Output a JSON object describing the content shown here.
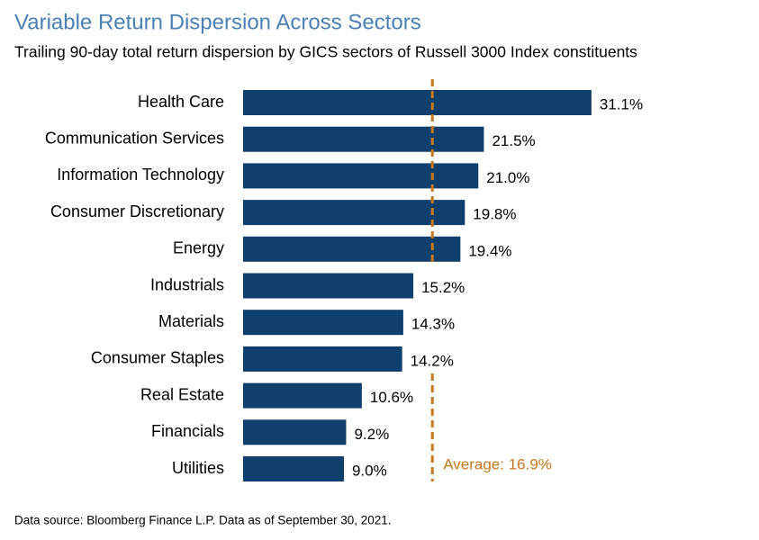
{
  "chart_data": {
    "type": "hbar",
    "title": "Variable Return Dispersion Across Sectors",
    "subtitle": "Trailing 90-day total return dispersion by GICS sectors of Russell 3000 Index constituents",
    "categories": [
      "Health Care",
      "Communication Services",
      "Information Technology",
      "Consumer Discretionary",
      "Energy",
      "Industrials",
      "Materials",
      "Consumer Staples",
      "Real Estate",
      "Financials",
      "Utilities"
    ],
    "values": [
      31.1,
      21.5,
      21.0,
      19.8,
      19.4,
      15.2,
      14.3,
      14.2,
      10.6,
      9.2,
      9.0
    ],
    "value_labels": [
      "31.1%",
      "21.5%",
      "21.0%",
      "19.8%",
      "19.4%",
      "15.2%",
      "14.3%",
      "14.2%",
      "10.6%",
      "9.2%",
      "9.0%"
    ],
    "color": "#0f3f6c",
    "average": {
      "value": 16.9,
      "label": "Average: 16.9%",
      "color": "#c5791f"
    },
    "footnote": "Data source: Bloomberg Finance L.P. Data as of September 30, 2021."
  }
}
